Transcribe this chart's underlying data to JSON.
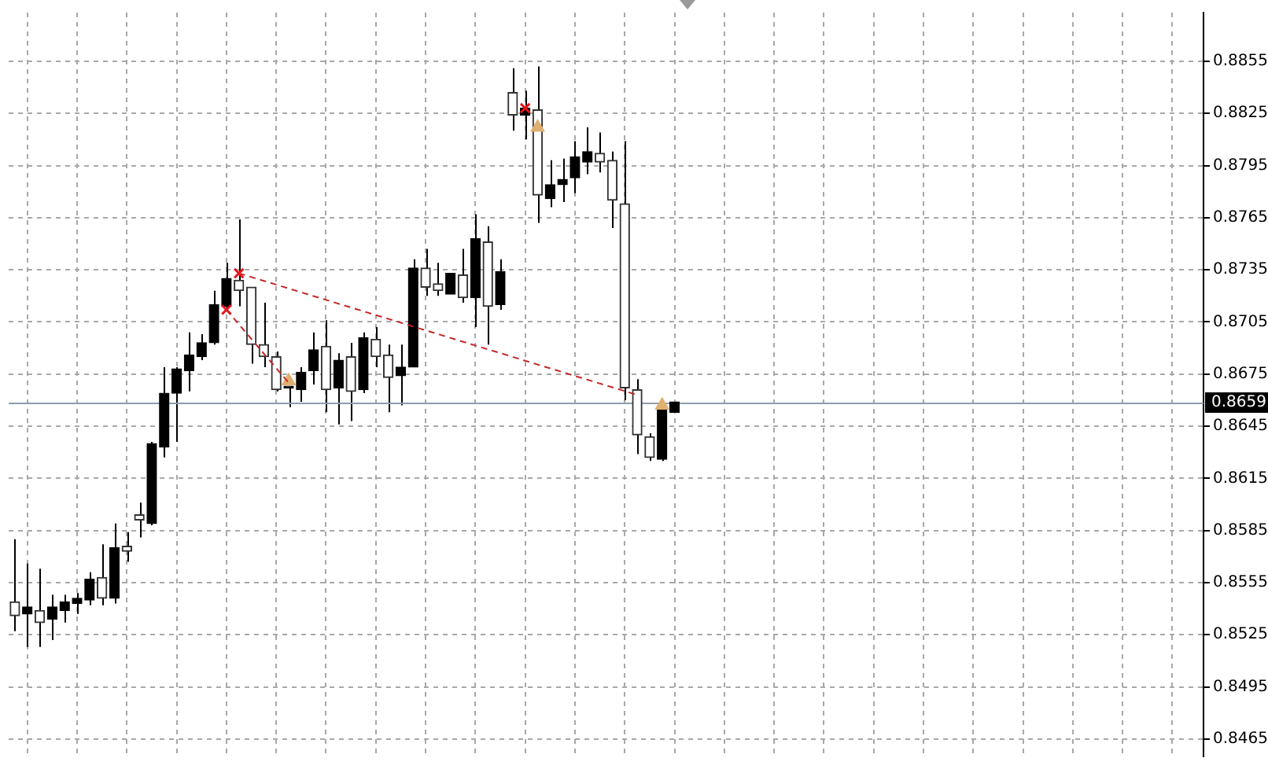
{
  "chart_data": {
    "type": "candlestick",
    "categories": [
      null,
      null,
      null,
      null,
      null,
      null,
      null,
      null,
      null,
      null,
      null,
      null,
      null,
      null,
      null,
      null,
      null,
      null,
      null,
      null,
      null,
      null,
      null,
      null,
      null,
      null,
      null,
      null,
      null,
      null,
      null,
      null,
      null,
      null,
      null,
      null,
      null,
      null,
      null,
      null,
      null,
      null,
      null,
      null,
      null,
      null,
      null,
      null,
      null,
      null,
      null,
      null,
      null,
      null,
      null,
      null,
      null,
      null,
      null,
      null,
      null,
      null,
      null,
      null,
      null,
      null,
      null,
      null,
      null,
      null,
      null,
      null,
      null,
      null,
      null,
      null,
      null,
      null,
      null,
      null,
      null,
      null,
      null,
      null,
      null,
      null,
      null,
      null,
      null,
      null,
      null,
      null,
      null,
      null,
      null,
      null
    ],
    "ohlc": [
      [
        0.8544,
        0.858,
        0.8527,
        0.8536
      ],
      [
        0.8537,
        0.8566,
        0.8518,
        0.8541
      ],
      [
        0.8539,
        0.8563,
        0.8518,
        0.8532
      ],
      [
        0.8534,
        0.8548,
        0.8522,
        0.8541
      ],
      [
        0.8539,
        0.8548,
        0.8532,
        0.8544
      ],
      [
        0.8543,
        0.8549,
        0.8537,
        0.8546
      ],
      [
        0.8545,
        0.8561,
        0.8542,
        0.8557
      ],
      [
        0.8558,
        0.8577,
        0.8542,
        0.8546
      ],
      [
        0.8546,
        0.8589,
        0.8543,
        0.8575
      ],
      [
        0.8576,
        0.8584,
        0.8567,
        0.8573
      ],
      [
        0.8594,
        0.8601,
        0.8581,
        0.8591
      ],
      [
        0.8589,
        0.8636,
        0.8588,
        0.8635
      ],
      [
        0.8633,
        0.8679,
        0.8627,
        0.8664
      ],
      [
        0.8664,
        0.8679,
        0.8636,
        0.8678
      ],
      [
        0.8677,
        0.8699,
        0.8665,
        0.8686
      ],
      [
        0.8685,
        0.8698,
        0.8683,
        0.8693
      ],
      [
        0.8693,
        0.8723,
        0.8692,
        0.8715
      ],
      [
        0.8714,
        0.8739,
        0.8712,
        0.873
      ],
      [
        0.8729,
        0.8764,
        0.8714,
        0.8723
      ],
      [
        0.8725,
        0.8725,
        0.8681,
        0.8692
      ],
      [
        0.8692,
        0.8716,
        0.8679,
        0.8685
      ],
      [
        0.8685,
        0.8688,
        0.8665,
        0.8666
      ],
      [
        0.8667,
        0.8668,
        0.8656,
        0.8668
      ],
      [
        0.8666,
        0.8679,
        0.8659,
        0.8676
      ],
      [
        0.8677,
        0.8699,
        0.8669,
        0.8689
      ],
      [
        0.8691,
        0.8706,
        0.8653,
        0.8666
      ],
      [
        0.8667,
        0.8687,
        0.8646,
        0.8683
      ],
      [
        0.8685,
        0.8693,
        0.8648,
        0.8665
      ],
      [
        0.8666,
        0.8699,
        0.8664,
        0.8696
      ],
      [
        0.8695,
        0.8702,
        0.8679,
        0.8685
      ],
      [
        0.8686,
        0.8692,
        0.8653,
        0.8673
      ],
      [
        0.8674,
        0.8692,
        0.8657,
        0.8679
      ],
      [
        0.8679,
        0.8741,
        0.8679,
        0.8736
      ],
      [
        0.8736,
        0.8747,
        0.872,
        0.8725
      ],
      [
        0.8727,
        0.8739,
        0.872,
        0.8723
      ],
      [
        0.8721,
        0.8733,
        0.8721,
        0.8733
      ],
      [
        0.8732,
        0.8747,
        0.8716,
        0.8719
      ],
      [
        0.8719,
        0.8767,
        0.8702,
        0.8753
      ],
      [
        0.8751,
        0.876,
        0.8692,
        0.8714
      ],
      [
        0.8715,
        0.8741,
        0.8712,
        0.8734
      ],
      [
        0.8837,
        0.8851,
        0.8815,
        0.8824
      ],
      [
        0.8824,
        0.8838,
        0.881,
        0.8828
      ],
      [
        0.8827,
        0.8852,
        0.8762,
        0.8778
      ],
      [
        0.8776,
        0.8798,
        0.8771,
        0.8784
      ],
      [
        0.8784,
        0.8799,
        0.8774,
        0.8787
      ],
      [
        0.8788,
        0.8809,
        0.8779,
        0.88
      ],
      [
        0.8797,
        0.8817,
        0.879,
        0.8803
      ],
      [
        0.8802,
        0.8814,
        0.8791,
        0.8797
      ],
      [
        0.8798,
        0.8803,
        0.8759,
        0.8775
      ],
      [
        0.8773,
        0.8809,
        0.866,
        0.8667
      ],
      [
        0.8666,
        0.8672,
        0.8629,
        0.864
      ],
      [
        0.8639,
        0.8641,
        0.8625,
        0.8627
      ],
      [
        0.8626,
        0.8657,
        0.8625,
        0.8655
      ],
      [
        0.8653,
        0.8659,
        0.8653,
        0.8659
      ],
      null,
      null,
      null,
      null,
      null,
      null,
      null,
      null,
      null,
      null,
      null,
      null,
      null,
      null,
      null,
      null,
      null,
      null,
      null,
      null,
      null,
      null,
      null,
      null,
      null,
      null,
      null,
      null,
      null,
      null,
      null,
      null,
      null,
      null,
      null,
      null,
      null,
      null,
      null,
      null,
      null,
      null
    ],
    "colors": [
      "#333333",
      "#000000",
      "#333333",
      "#000000",
      "#000000",
      "#000000",
      "#000000",
      "#333333",
      "#000000",
      "#333333",
      "#333333",
      "#000000",
      "#000000",
      "#000000",
      "#000000",
      "#000000",
      "#000000",
      "#000000",
      "#333333",
      "#333333",
      "#333333",
      "#333333",
      "#000000",
      "#000000",
      "#000000",
      "#333333",
      "#000000",
      "#333333",
      "#000000",
      "#333333",
      "#333333",
      "#000000",
      "#000000",
      "#333333",
      "#333333",
      "#000000",
      "#333333",
      "#000000",
      "#333333",
      "#000000",
      "#333333",
      "#000000",
      "#333333",
      "#000000",
      "#000000",
      "#000000",
      "#000000",
      "#333333",
      "#333333",
      "#333333",
      "#333333",
      "#333333",
      "#000000",
      "#000000",
      null,
      null,
      null,
      null,
      null,
      null,
      null,
      null,
      null,
      null,
      null,
      null,
      null,
      null,
      null,
      null,
      null,
      null,
      null,
      null,
      null,
      null,
      null,
      null,
      null,
      null,
      null,
      null,
      null,
      null,
      null,
      null,
      null,
      null,
      null,
      null,
      null,
      null,
      null,
      null,
      null,
      null
    ],
    "color": "#000000",
    "series": [
      {
        "type": "line",
        "color": "#c62828",
        "line_style": "dashed",
        "marker": "none",
        "values": [
          null,
          null,
          null,
          null,
          null,
          null,
          null,
          null,
          null,
          null,
          null,
          null,
          null,
          null,
          null,
          null,
          null,
          null,
          0.8733,
          null,
          null,
          null,
          null,
          null,
          null,
          null,
          null,
          null,
          null,
          null,
          null,
          null,
          null,
          null,
          null,
          null,
          null,
          null,
          null,
          null,
          null,
          null,
          null,
          null,
          null,
          null,
          null,
          null,
          null,
          null,
          0.8663,
          null,
          null,
          null,
          null,
          null,
          null,
          null,
          null,
          null,
          null,
          null,
          null,
          null,
          null,
          null,
          null,
          null,
          null,
          null,
          null,
          null,
          null,
          null,
          null,
          null,
          null,
          null,
          null,
          null,
          null,
          null,
          null,
          null,
          null,
          null,
          null,
          null,
          null,
          null,
          null,
          null,
          null,
          null,
          null,
          null
        ]
      },
      {
        "type": "line",
        "color": "#c62828",
        "line_style": "dashed",
        "marker": "none",
        "values": [
          null,
          null,
          null,
          null,
          null,
          null,
          null,
          null,
          null,
          null,
          null,
          null,
          null,
          null,
          null,
          null,
          null,
          0.8712,
          null,
          null,
          null,
          null,
          0.867,
          null,
          null,
          null,
          null,
          null,
          null,
          null,
          null,
          null,
          null,
          null,
          null,
          null,
          null,
          null,
          null,
          null,
          null,
          null,
          null,
          null,
          null,
          null,
          null,
          null,
          null,
          null,
          null,
          null,
          null,
          null,
          null,
          null,
          null,
          null,
          null,
          null,
          null,
          null,
          null,
          null,
          null,
          null,
          null,
          null,
          null,
          null,
          null,
          null,
          null,
          null,
          null,
          null,
          null,
          null,
          null,
          null,
          null,
          null,
          null,
          null,
          null,
          null,
          null,
          null,
          null,
          null,
          null,
          null,
          null,
          null,
          null,
          null
        ]
      },
      {
        "type": "scatter",
        "color": "#e8141b",
        "marker": "cross",
        "values": [
          null,
          null,
          null,
          null,
          null,
          null,
          null,
          null,
          null,
          null,
          null,
          null,
          null,
          null,
          null,
          null,
          null,
          0.8712,
          0.8733,
          null,
          null,
          null,
          null,
          null,
          null,
          null,
          null,
          null,
          null,
          null,
          null,
          null,
          null,
          null,
          null,
          null,
          null,
          null,
          null,
          null,
          null,
          0.8828,
          null,
          null,
          null,
          null,
          null,
          null,
          null,
          null,
          null,
          null,
          null,
          null,
          null,
          null,
          null,
          null,
          null,
          null,
          null,
          null,
          null,
          null,
          null,
          null,
          null,
          null,
          null,
          null,
          null,
          null,
          null,
          null,
          null,
          null,
          null,
          null,
          null,
          null,
          null,
          null,
          null,
          null,
          null,
          null,
          null,
          null,
          null,
          null,
          null,
          null,
          null,
          null,
          null,
          null
        ]
      },
      {
        "type": "scatter",
        "color": "#e0b070",
        "marker": "triangle",
        "values": [
          null,
          null,
          null,
          null,
          null,
          null,
          null,
          null,
          null,
          null,
          null,
          null,
          null,
          null,
          null,
          null,
          null,
          null,
          null,
          null,
          null,
          null,
          0.8671,
          null,
          null,
          null,
          null,
          null,
          null,
          null,
          null,
          null,
          null,
          null,
          null,
          null,
          null,
          null,
          null,
          null,
          null,
          null,
          0.8817,
          null,
          null,
          null,
          null,
          null,
          null,
          null,
          null,
          null,
          0.8657,
          null,
          null,
          null,
          null,
          null,
          null,
          null,
          null,
          null,
          null,
          null,
          null,
          null,
          null,
          null,
          null,
          null,
          null,
          null,
          null,
          null,
          null,
          null,
          null,
          null,
          null,
          null,
          null,
          null,
          null,
          null,
          null,
          null,
          null,
          null,
          null,
          null,
          null,
          null,
          null,
          null,
          null,
          null
        ]
      }
    ],
    "ylim": [
      0.8455,
      0.8883
    ],
    "yticks": [
      0.8465,
      0.8495,
      0.8525,
      0.8555,
      0.8585,
      0.8615,
      0.8645,
      0.8675,
      0.8705,
      0.8735,
      0.8765,
      0.8795,
      0.8825,
      0.8855
    ],
    "ref_lines": [
      {
        "axis": "y",
        "value": 0.8659,
        "label": "0.8659",
        "color": "#8e9cab"
      }
    ],
    "grid": true,
    "legend": false,
    "tick_labels": "y"
  }
}
